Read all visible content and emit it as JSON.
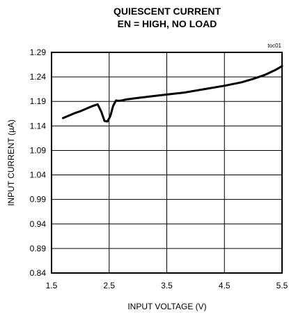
{
  "chart_data": {
    "type": "line",
    "title_line1": "QUIESCENT CURRENT",
    "title_line2": "EN = HIGH, NO LOAD",
    "tag": "toc01",
    "xlabel": "INPUT VOLTAGE (V)",
    "ylabel": "INPUT CURRENT (µA)",
    "xlim": [
      1.5,
      5.5
    ],
    "ylim": [
      0.84,
      1.29
    ],
    "xticks": [
      "1.5",
      "2.5",
      "3.5",
      "4.5",
      "5.5"
    ],
    "yticks": [
      "1.29",
      "1.24",
      "1.19",
      "1.14",
      "1.09",
      "1.04",
      "0.99",
      "0.94",
      "0.89",
      "0.84"
    ],
    "grid": true,
    "series": [
      {
        "x": [
          1.7,
          1.8,
          1.9,
          2.0,
          2.1,
          2.2,
          2.3,
          2.36,
          2.42,
          2.47,
          2.52,
          2.57,
          2.62,
          2.66,
          2.72,
          2.8,
          3.0,
          3.2,
          3.5,
          3.8,
          4.0,
          4.2,
          4.5,
          4.8,
          5.0,
          5.2,
          5.4,
          5.5
        ],
        "y": [
          1.156,
          1.161,
          1.166,
          1.17,
          1.175,
          1.18,
          1.184,
          1.17,
          1.15,
          1.149,
          1.16,
          1.181,
          1.192,
          1.191,
          1.192,
          1.194,
          1.197,
          1.2,
          1.204,
          1.208,
          1.212,
          1.216,
          1.222,
          1.229,
          1.236,
          1.244,
          1.255,
          1.262
        ]
      }
    ]
  }
}
